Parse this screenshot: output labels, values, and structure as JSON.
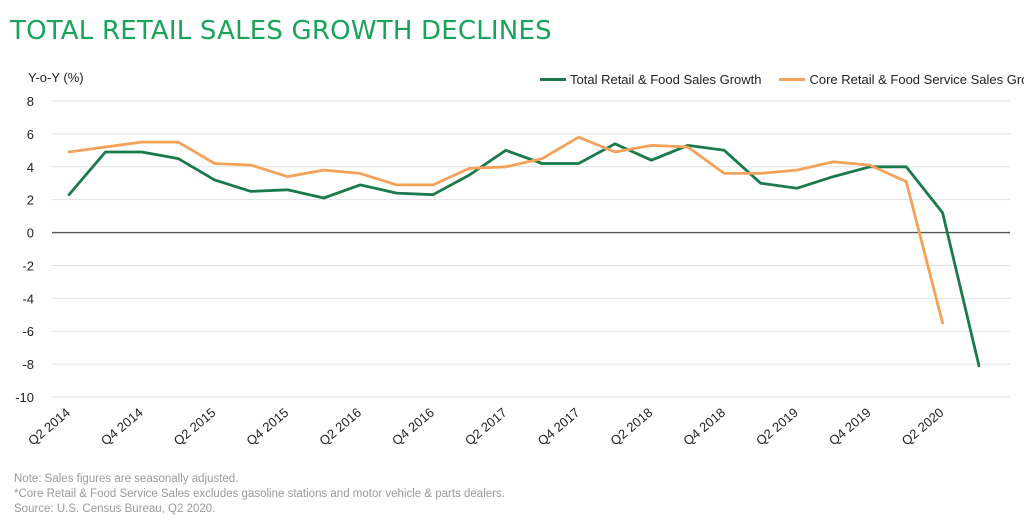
{
  "title": "TOTAL RETAIL SALES GROWTH DECLINES",
  "notes": {
    "line1": "Note: Sales figures are seasonally adjusted.",
    "line2": "*Core Retail & Food Service Sales excludes gasoline stations and motor vehicle & parts dealers.",
    "line3": "Source: U.S. Census Bureau, Q2 2020."
  },
  "chart_data": {
    "type": "line",
    "title": "TOTAL RETAIL SALES GROWTH DECLINES",
    "ylabel": "Y-o-Y (%)",
    "xlabel": "",
    "ylim": [
      -10,
      8
    ],
    "yticks": [
      8,
      6,
      4,
      2,
      0,
      -2,
      -4,
      -6,
      -8,
      -10
    ],
    "grid": true,
    "legend_position": "top-right",
    "x": [
      "Q2 2014",
      "Q3 2014",
      "Q4 2014",
      "Q1 2015",
      "Q2 2015",
      "Q3 2015",
      "Q4 2015",
      "Q1 2016",
      "Q2 2016",
      "Q3 2016",
      "Q4 2016",
      "Q1 2017",
      "Q2 2017",
      "Q3 2017",
      "Q4 2017",
      "Q1 2018",
      "Q2 2018",
      "Q3 2018",
      "Q4 2018",
      "Q1 2019",
      "Q2 2019",
      "Q3 2019",
      "Q4 2019",
      "Q1 2020",
      "Q2 2020",
      "Q3 2020"
    ],
    "x_tick_labels": [
      "Q2 2014",
      "Q4 2014",
      "Q2 2015",
      "Q4 2015",
      "Q2 2016",
      "Q4 2016",
      "Q2 2017",
      "Q4 2017",
      "Q2 2018",
      "Q4 2018",
      "Q2 2019",
      "Q4 2019",
      "Q2 2020"
    ],
    "series": [
      {
        "name": "Total Retail  & Food Sales Growth",
        "color": "#1a7a4c",
        "values": [
          2.3,
          4.9,
          4.9,
          4.5,
          3.2,
          2.5,
          2.6,
          2.1,
          2.9,
          2.4,
          2.3,
          3.5,
          5.0,
          4.2,
          4.2,
          5.4,
          4.4,
          5.3,
          5.0,
          3.0,
          2.7,
          3.4,
          4.0,
          4.0,
          1.2,
          -8.1
        ]
      },
      {
        "name": "Core Retail & Food Service Sales Growth*",
        "color": "#f4a15a",
        "values": [
          4.9,
          5.2,
          5.5,
          5.5,
          4.2,
          4.1,
          3.4,
          3.8,
          3.6,
          2.9,
          2.9,
          3.9,
          4.0,
          4.5,
          5.8,
          4.9,
          5.3,
          5.2,
          3.6,
          3.6,
          3.8,
          4.3,
          4.1,
          3.1,
          -5.5,
          null
        ]
      }
    ]
  }
}
